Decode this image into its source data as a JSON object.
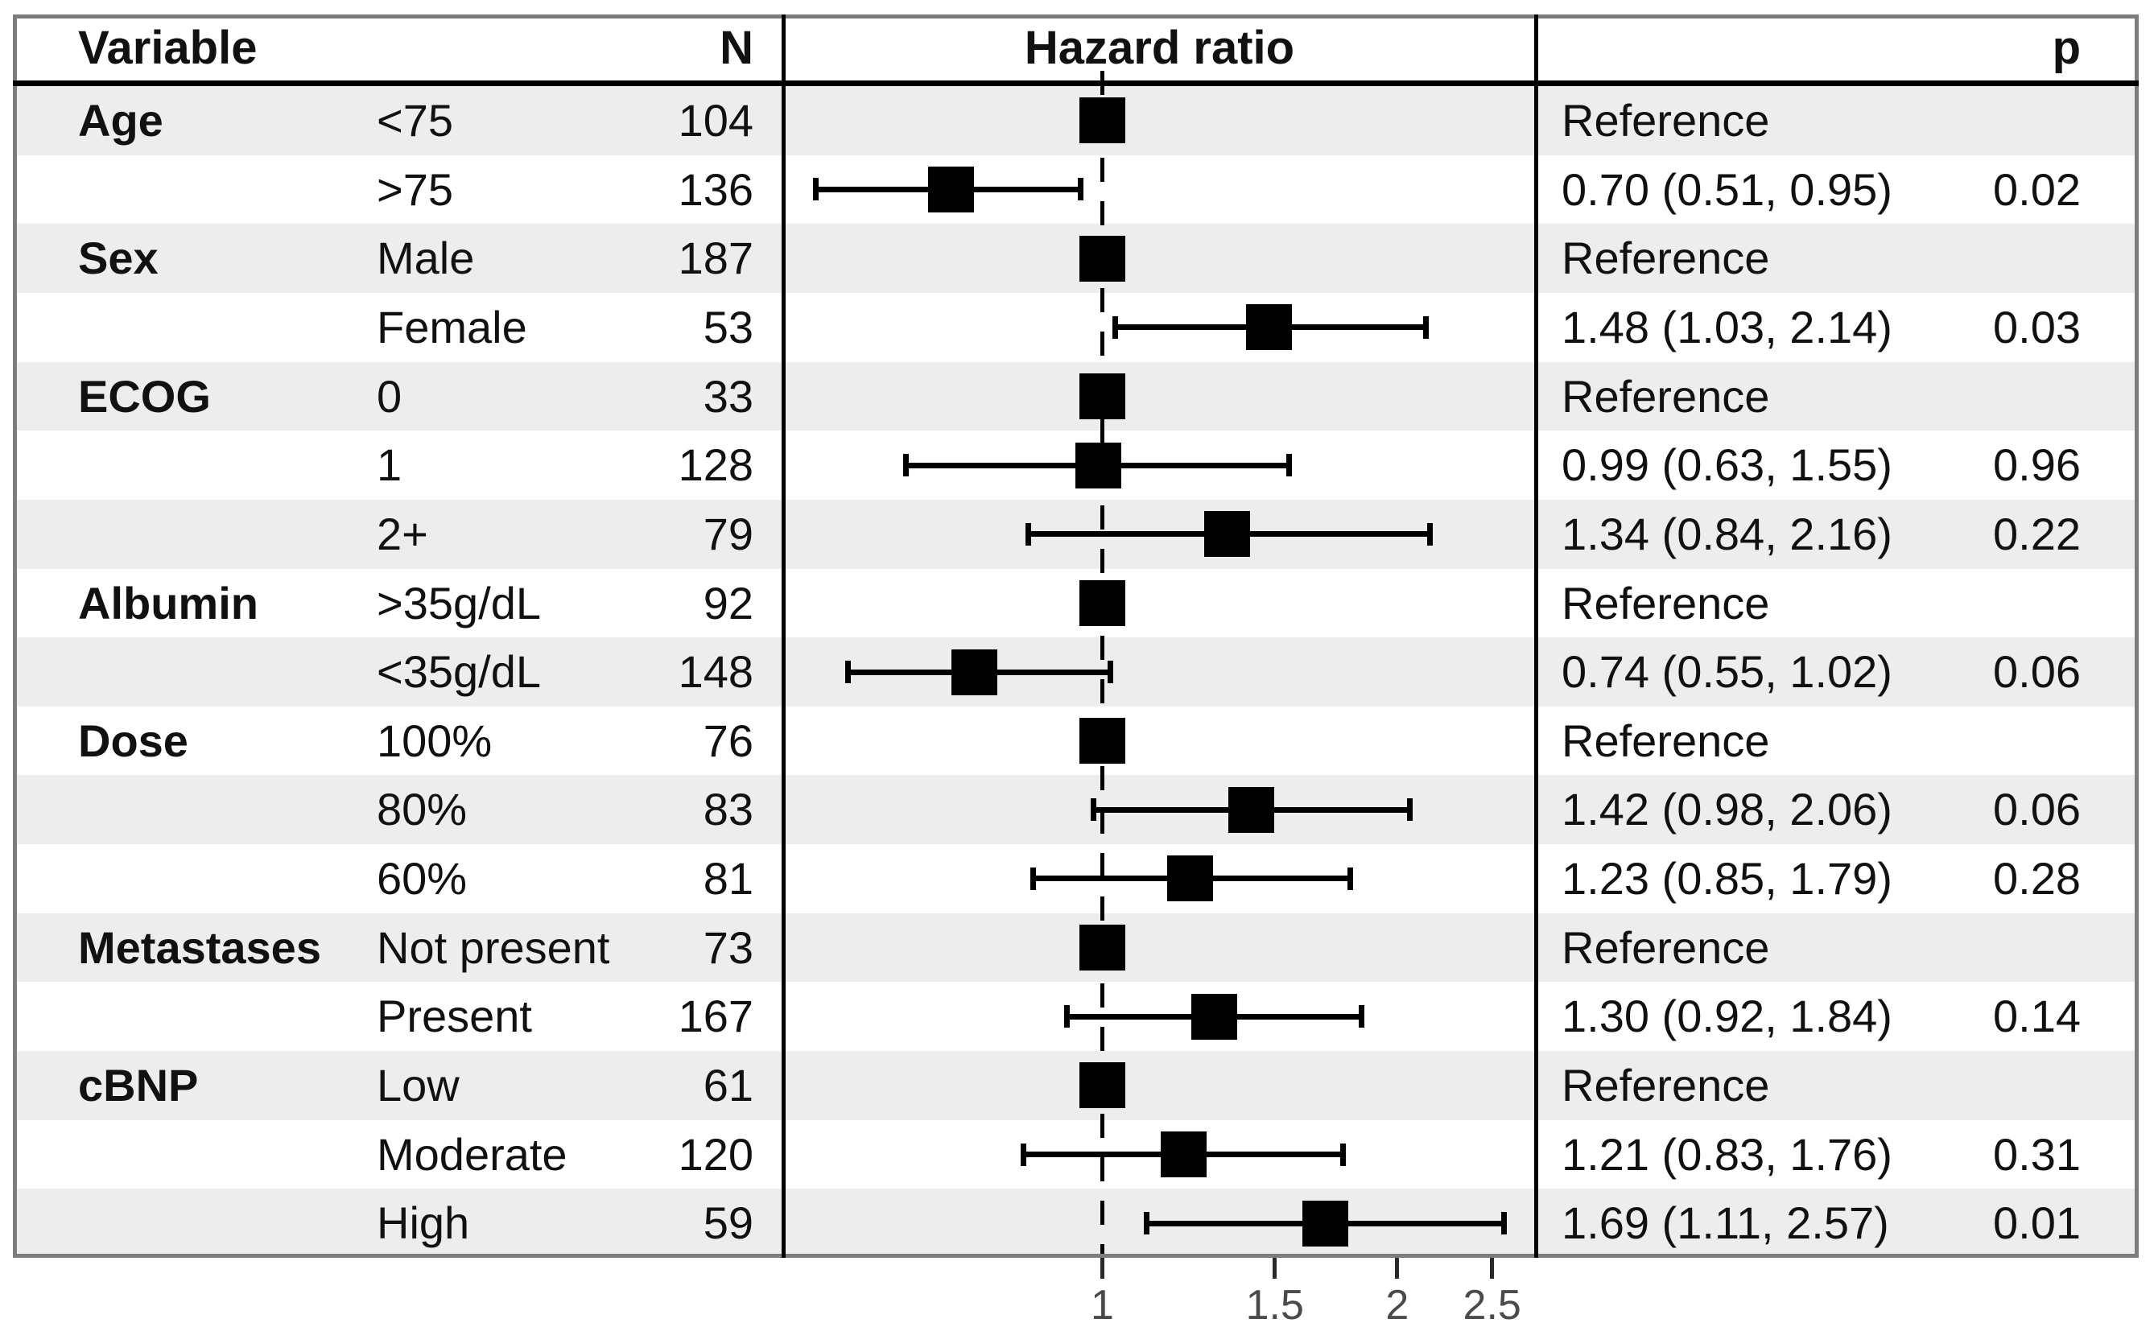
{
  "figure": {
    "headers": {
      "variable": "Variable",
      "n": "N",
      "hazard_ratio": "Hazard ratio",
      "p": "p"
    }
  },
  "chart_data": {
    "type": "forest",
    "title": "Hazard ratio",
    "x_scale": "log",
    "xlim": [
      0.474,
      2.76
    ],
    "x_tick_labels": [
      "1",
      "1.5",
      "2",
      "2.5"
    ],
    "x_tick_values": [
      1,
      1.5,
      2,
      2.5
    ],
    "reference_line": 1,
    "rows": [
      {
        "group": "Age",
        "level": "<75",
        "n": "104",
        "hr": 1.0,
        "lo": null,
        "hi": null,
        "estimate": "Reference",
        "p": "",
        "reference": true,
        "shaded": true
      },
      {
        "group": "",
        "level": ">75",
        "n": "136",
        "hr": 0.7,
        "lo": 0.51,
        "hi": 0.95,
        "estimate": "0.70 (0.51, 0.95)",
        "p": "0.02",
        "reference": false,
        "shaded": false
      },
      {
        "group": "Sex",
        "level": "Male",
        "n": "187",
        "hr": 1.0,
        "lo": null,
        "hi": null,
        "estimate": "Reference",
        "p": "",
        "reference": true,
        "shaded": true
      },
      {
        "group": "",
        "level": "Female",
        "n": "53",
        "hr": 1.48,
        "lo": 1.03,
        "hi": 2.14,
        "estimate": "1.48 (1.03, 2.14)",
        "p": "0.03",
        "reference": false,
        "shaded": false
      },
      {
        "group": "ECOG",
        "level": "0",
        "n": "33",
        "hr": 1.0,
        "lo": null,
        "hi": null,
        "estimate": "Reference",
        "p": "",
        "reference": true,
        "shaded": true
      },
      {
        "group": "",
        "level": "1",
        "n": "128",
        "hr": 0.99,
        "lo": 0.63,
        "hi": 1.55,
        "estimate": "0.99 (0.63, 1.55)",
        "p": "0.96",
        "reference": false,
        "shaded": false
      },
      {
        "group": "",
        "level": "2+",
        "n": "79",
        "hr": 1.34,
        "lo": 0.84,
        "hi": 2.16,
        "estimate": "1.34 (0.84, 2.16)",
        "p": "0.22",
        "reference": false,
        "shaded": true
      },
      {
        "group": "Albumin",
        "level": ">35g/dL",
        "n": "92",
        "hr": 1.0,
        "lo": null,
        "hi": null,
        "estimate": "Reference",
        "p": "",
        "reference": true,
        "shaded": false
      },
      {
        "group": "",
        "level": "<35g/dL",
        "n": "148",
        "hr": 0.74,
        "lo": 0.55,
        "hi": 1.02,
        "estimate": "0.74 (0.55, 1.02)",
        "p": "0.06",
        "reference": false,
        "shaded": true
      },
      {
        "group": "Dose",
        "level": "100%",
        "n": "76",
        "hr": 1.0,
        "lo": null,
        "hi": null,
        "estimate": "Reference",
        "p": "",
        "reference": true,
        "shaded": false
      },
      {
        "group": "",
        "level": "80%",
        "n": "83",
        "hr": 1.42,
        "lo": 0.98,
        "hi": 2.06,
        "estimate": "1.42 (0.98, 2.06)",
        "p": "0.06",
        "reference": false,
        "shaded": true
      },
      {
        "group": "",
        "level": "60%",
        "n": "81",
        "hr": 1.23,
        "lo": 0.85,
        "hi": 1.79,
        "estimate": "1.23 (0.85, 1.79)",
        "p": "0.28",
        "reference": false,
        "shaded": false
      },
      {
        "group": "Metastases",
        "level": "Not present",
        "n": "73",
        "hr": 1.0,
        "lo": null,
        "hi": null,
        "estimate": "Reference",
        "p": "",
        "reference": true,
        "shaded": true
      },
      {
        "group": "",
        "level": "Present",
        "n": "167",
        "hr": 1.3,
        "lo": 0.92,
        "hi": 1.84,
        "estimate": "1.30 (0.92, 1.84)",
        "p": "0.14",
        "reference": false,
        "shaded": false
      },
      {
        "group": "cBNP",
        "level": "Low",
        "n": "61",
        "hr": 1.0,
        "lo": null,
        "hi": null,
        "estimate": "Reference",
        "p": "",
        "reference": true,
        "shaded": true
      },
      {
        "group": "",
        "level": "Moderate",
        "n": "120",
        "hr": 1.21,
        "lo": 0.83,
        "hi": 1.76,
        "estimate": "1.21 (0.83, 1.76)",
        "p": "0.31",
        "reference": false,
        "shaded": false
      },
      {
        "group": "",
        "level": "High",
        "n": "59",
        "hr": 1.69,
        "lo": 1.11,
        "hi": 2.57,
        "estimate": "1.69 (1.11, 2.57)",
        "p": "0.01",
        "reference": false,
        "shaded": true
      }
    ]
  },
  "colors": {
    "background": "#ffffff",
    "stripe": "#ededed",
    "frame": "#7d7d7d",
    "divider": "#000000",
    "marker": "#000000",
    "text": "#111111",
    "tick_label": "#4a4a4a"
  }
}
